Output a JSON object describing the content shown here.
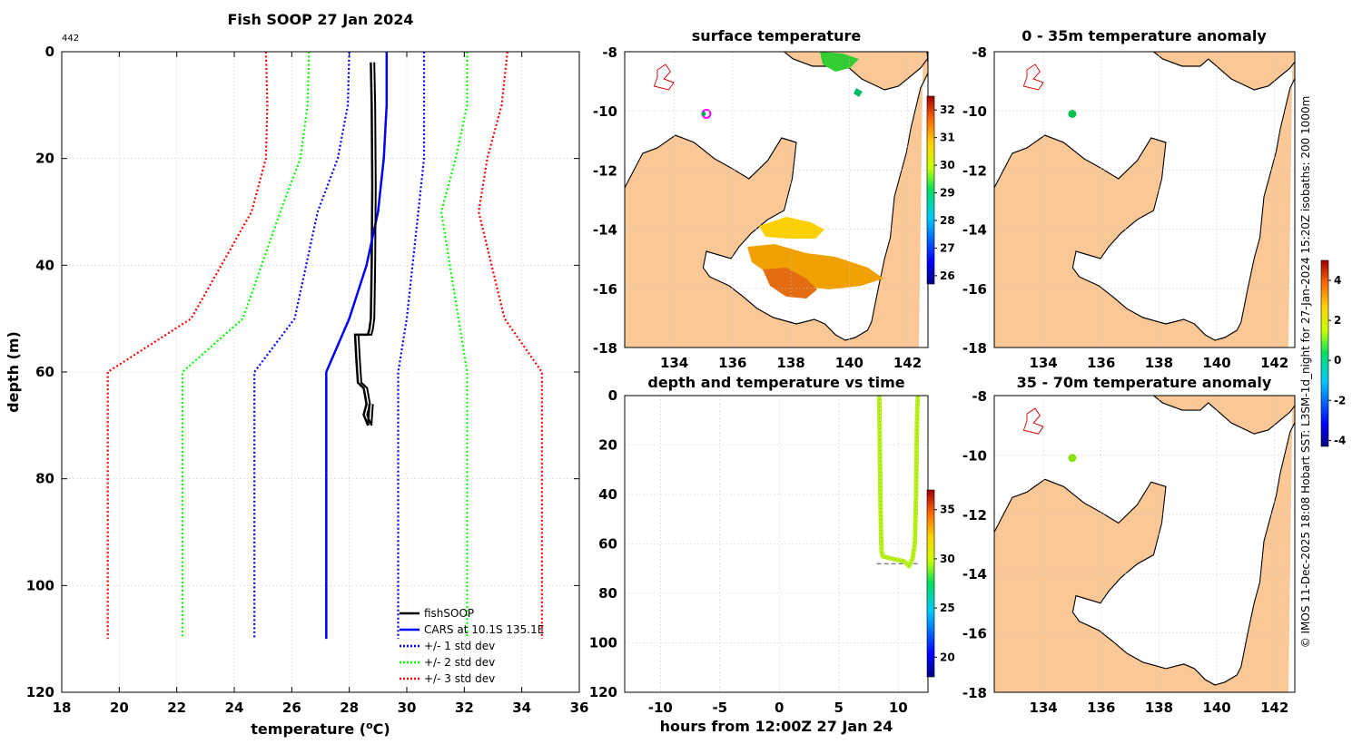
{
  "chart_data": [
    {
      "type": "line",
      "title": "Fish SOOP 27 Jan 2024",
      "corner_label": "442",
      "xlabel": "temperature (",
      "xlabel_sup": "o",
      "xlabel_suffix": "C)",
      "ylabel": "depth (m)",
      "xlim": [
        18,
        36
      ],
      "ylim": [
        0,
        120
      ],
      "xticks": [
        "18",
        "20",
        "22",
        "24",
        "26",
        "28",
        "30",
        "32",
        "34",
        "36"
      ],
      "yticks": [
        "0",
        "20",
        "40",
        "60",
        "80",
        "100",
        "120"
      ],
      "series": [
        {
          "name": "fishSOOP",
          "color": "#000000",
          "style": "solid",
          "x": [
            28.75,
            28.78,
            28.8,
            28.78,
            28.75,
            28.7,
            28.65,
            28.2,
            28.25,
            28.3,
            28.5,
            28.6,
            28.5,
            28.65,
            28.7
          ],
          "y": [
            2,
            10,
            25,
            40,
            50,
            52,
            53,
            53,
            58,
            62,
            63,
            66,
            68,
            70,
            66
          ]
        },
        {
          "name": "CARS at 10.1S 135.1E",
          "color": "#0000ff",
          "style": "solid",
          "x": [
            29.3,
            29.3,
            29.2,
            29.0,
            28.6,
            28.0,
            27.2,
            27.2
          ],
          "y": [
            0,
            10,
            20,
            30,
            40,
            50,
            60,
            110
          ]
        },
        {
          "name": "+/- 1 std dev",
          "color": "#0000ff",
          "style": "dotted",
          "x": [
            28.0,
            27.95,
            27.6,
            26.9,
            26.1,
            24.7,
            24.7
          ],
          "y": [
            0,
            10,
            20,
            30,
            50,
            60,
            110
          ],
          "x2": [
            30.6,
            30.6,
            30.6,
            30.4,
            30.0,
            29.7,
            29.7
          ],
          "y2": [
            0,
            10,
            20,
            30,
            50,
            60,
            110
          ]
        },
        {
          "name": "+/- 2 std dev",
          "color": "#00ff00",
          "style": "dotted",
          "x": [
            26.6,
            26.55,
            26.3,
            25.6,
            24.3,
            22.2,
            22.2
          ],
          "y": [
            0,
            10,
            20,
            30,
            50,
            60,
            110
          ],
          "x2": [
            32.1,
            32.1,
            31.7,
            31.2,
            31.8,
            32.1,
            32.1
          ],
          "y2": [
            0,
            10,
            20,
            30,
            50,
            60,
            110
          ]
        },
        {
          "name": "+/- 3 std dev",
          "color": "#ff0000",
          "style": "dotted",
          "x": [
            25.1,
            25.15,
            25.1,
            24.6,
            22.5,
            19.6,
            19.6
          ],
          "y": [
            0,
            10,
            20,
            30,
            50,
            60,
            110
          ],
          "x2": [
            33.5,
            33.3,
            32.8,
            32.5,
            33.4,
            34.7,
            34.7
          ],
          "y2": [
            0,
            10,
            20,
            30,
            50,
            60,
            110
          ]
        }
      ]
    },
    {
      "type": "heatmap",
      "title": "surface temperature",
      "xlim": [
        132.3,
        142.7
      ],
      "ylim": [
        -18,
        -8
      ],
      "xticks": [
        "134",
        "136",
        "138",
        "140",
        "142"
      ],
      "yticks": [
        "-8",
        "-10",
        "-12",
        "-14",
        "-16",
        "-18"
      ],
      "colorbar": {
        "min": 25.7,
        "max": 32.5,
        "ticks": [
          "26",
          "27",
          "28",
          "29",
          "30",
          "31",
          "32"
        ]
      },
      "marker": {
        "lon": 135.1,
        "lat": -10.1
      }
    },
    {
      "type": "heatmap",
      "title": "0 - 35m temperature anomaly",
      "xlim": [
        132.3,
        142.7
      ],
      "ylim": [
        -18,
        -8
      ],
      "xticks": [
        "134",
        "136",
        "138",
        "140",
        "142"
      ],
      "yticks": [
        "-8",
        "-10",
        "-12",
        "-14",
        "-16",
        "-18"
      ],
      "marker": {
        "lon": 135.0,
        "lat": -10.1
      }
    },
    {
      "type": "scatter",
      "title": "depth and temperature vs time",
      "xlabel": "hours from 12:00Z 27 Jan 24",
      "xlim": [
        -13,
        12.5
      ],
      "ylim": [
        0,
        120
      ],
      "xticks": [
        "-10",
        "-5",
        "0",
        "5",
        "10"
      ],
      "yticks": [
        "0",
        "20",
        "40",
        "60",
        "80",
        "100",
        "120"
      ],
      "colorbar": {
        "min": 18,
        "max": 37,
        "ticks": [
          "20",
          "25",
          "30",
          "35"
        ]
      },
      "trace": {
        "x": [
          8.4,
          8.45,
          8.5,
          8.55,
          8.6,
          8.7,
          9.5,
          10.5,
          10.9,
          11.2,
          11.4,
          11.5,
          11.55,
          11.6,
          11.65
        ],
        "y": [
          0,
          20,
          40,
          55,
          63,
          65,
          66,
          67,
          69,
          66,
          60,
          40,
          20,
          5,
          0
        ]
      },
      "reference_depth": 68
    },
    {
      "type": "heatmap",
      "title": "35 - 70m temperature anomaly",
      "xlim": [
        132.3,
        142.7
      ],
      "ylim": [
        -18,
        -8
      ],
      "xticks": [
        "134",
        "136",
        "138",
        "140",
        "142"
      ],
      "yticks": [
        "-8",
        "-10",
        "-12",
        "-14",
        "-16",
        "-18"
      ],
      "colorbar": {
        "min": -4.3,
        "max": 5.0,
        "ticks": [
          "-4",
          "-2",
          "0",
          "2",
          "4"
        ]
      },
      "marker": {
        "lon": 135.0,
        "lat": -10.1
      }
    }
  ],
  "footer_text": "© IMOS 11-Dec-2025 18:08 Hobart SST: L3SM-1d_night for 27-Jan-2024 15:20Z isobaths: 200  1000m"
}
